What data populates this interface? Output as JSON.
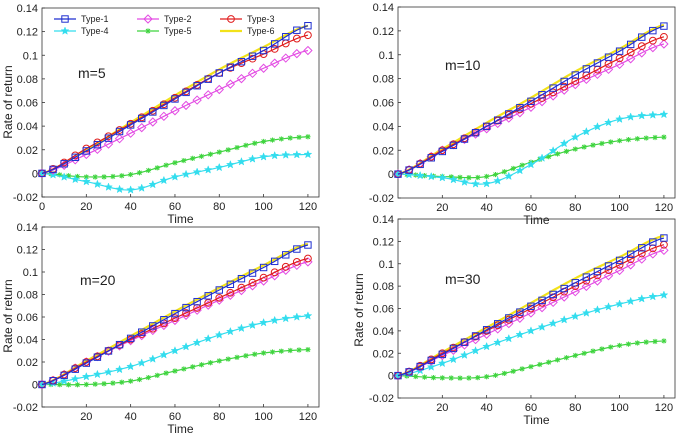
{
  "colors": {
    "Type-1": "#1f2fd0",
    "Type-2": "#e34ce3",
    "Type-3": "#e01c1c",
    "Type-4": "#33ddee",
    "Type-5": "#3fd43f",
    "Type-6": "#f2e21a",
    "dark": "#222222"
  },
  "chart_data": [
    {
      "type": "line",
      "annotation": "m=5",
      "xlabel": "Time",
      "ylabel": "Rate of return",
      "xlim": [
        0,
        125
      ],
      "ylim": [
        -0.02,
        0.14
      ],
      "xticks": [
        "0",
        "20",
        "40",
        "60",
        "80",
        "100",
        "120"
      ],
      "yticks": [
        "-0.02",
        "0",
        "0.02",
        "0.04",
        "0.06",
        "0.08",
        "0.1",
        "0.12",
        "0.14"
      ],
      "legend": [
        "Type-1",
        "Type-2",
        "Type-3",
        "Type-4",
        "Type-5",
        "Type-6"
      ],
      "x": [
        0,
        20,
        40,
        60,
        80,
        100,
        120
      ],
      "series": [
        {
          "name": "Type-1",
          "values": [
            0,
            0.019,
            0.041,
            0.063,
            0.085,
            0.104,
            0.125
          ]
        },
        {
          "name": "Type-2",
          "values": [
            0,
            0.016,
            0.034,
            0.053,
            0.071,
            0.089,
            0.104
          ]
        },
        {
          "name": "Type-3",
          "values": [
            0,
            0.021,
            0.042,
            0.064,
            0.085,
            0.101,
            0.117
          ]
        },
        {
          "name": "Type-4",
          "values": [
            0,
            -0.007,
            -0.014,
            -0.003,
            0.005,
            0.014,
            0.016
          ]
        },
        {
          "name": "Type-5",
          "values": [
            0,
            -0.003,
            -0.001,
            0.009,
            0.018,
            0.027,
            0.031
          ]
        },
        {
          "name": "Type-6",
          "values": [
            0,
            0.02,
            0.043,
            0.066,
            0.088,
            0.107,
            0.125
          ]
        }
      ]
    },
    {
      "type": "line",
      "annotation": "m=10",
      "xlabel": "Time",
      "ylabel": "",
      "xlim": [
        0,
        125
      ],
      "ylim": [
        -0.02,
        0.14
      ],
      "xticks": [
        "20",
        "40",
        "60",
        "80",
        "100",
        "120"
      ],
      "yticks": [
        "-0.02",
        "0",
        "0.02",
        "0.04",
        "0.06",
        "0.08",
        "0.1",
        "0.12",
        "0.14"
      ],
      "legend": [],
      "x": [
        0,
        20,
        40,
        60,
        80,
        100,
        120
      ],
      "series": [
        {
          "name": "Type-1",
          "values": [
            0,
            0.019,
            0.04,
            0.061,
            0.083,
            0.103,
            0.124
          ]
        },
        {
          "name": "Type-2",
          "values": [
            0,
            0.02,
            0.038,
            0.056,
            0.075,
            0.092,
            0.109
          ]
        },
        {
          "name": "Type-3",
          "values": [
            0,
            0.02,
            0.04,
            0.059,
            0.078,
            0.097,
            0.115
          ]
        },
        {
          "name": "Type-4",
          "values": [
            0,
            -0.003,
            -0.008,
            0.008,
            0.031,
            0.046,
            0.05
          ]
        },
        {
          "name": "Type-5",
          "values": [
            0,
            -0.002,
            -0.002,
            0.01,
            0.021,
            0.028,
            0.031
          ]
        },
        {
          "name": "Type-6",
          "values": [
            0,
            0.021,
            0.043,
            0.064,
            0.086,
            0.105,
            0.125
          ]
        }
      ]
    },
    {
      "type": "line",
      "annotation": "m=20",
      "xlabel": "Time",
      "ylabel": "Rate of return",
      "xlim": [
        0,
        125
      ],
      "ylim": [
        -0.02,
        0.14
      ],
      "xticks": [
        "20",
        "40",
        "60",
        "80",
        "100",
        "120"
      ],
      "yticks": [
        "-0.02",
        "0",
        "0.02",
        "0.04",
        "0.06",
        "0.08",
        "0.1",
        "0.12",
        "0.14"
      ],
      "legend": [],
      "x": [
        0,
        20,
        40,
        60,
        80,
        100,
        120
      ],
      "series": [
        {
          "name": "Type-1",
          "values": [
            0,
            0.019,
            0.041,
            0.063,
            0.084,
            0.104,
            0.124
          ]
        },
        {
          "name": "Type-2",
          "values": [
            0,
            0.02,
            0.039,
            0.057,
            0.075,
            0.092,
            0.109
          ]
        },
        {
          "name": "Type-3",
          "values": [
            0,
            0.02,
            0.04,
            0.059,
            0.077,
            0.095,
            0.112
          ]
        },
        {
          "name": "Type-4",
          "values": [
            0,
            0.007,
            0.016,
            0.03,
            0.044,
            0.055,
            0.061
          ]
        },
        {
          "name": "Type-5",
          "values": [
            0,
            0.0,
            0.003,
            0.012,
            0.021,
            0.028,
            0.031
          ]
        },
        {
          "name": "Type-6",
          "values": [
            0,
            0.021,
            0.043,
            0.065,
            0.086,
            0.106,
            0.125
          ]
        }
      ]
    },
    {
      "type": "line",
      "annotation": "m=30",
      "xlabel": "Time",
      "ylabel": "Rate of return",
      "xlim": [
        0,
        125
      ],
      "ylim": [
        -0.02,
        0.14
      ],
      "xticks": [
        "20",
        "40",
        "60",
        "80",
        "100",
        "120"
      ],
      "yticks": [
        "-0.02",
        "0",
        "0.02",
        "0.04",
        "0.06",
        "0.08",
        "0.1",
        "0.12",
        "0.14"
      ],
      "legend": [],
      "x": [
        0,
        20,
        40,
        60,
        80,
        100,
        120
      ],
      "series": [
        {
          "name": "Type-1",
          "values": [
            0,
            0.019,
            0.041,
            0.062,
            0.083,
            0.103,
            0.123
          ]
        },
        {
          "name": "Type-2",
          "values": [
            0,
            0.018,
            0.037,
            0.056,
            0.075,
            0.094,
            0.112
          ]
        },
        {
          "name": "Type-3",
          "values": [
            0,
            0.02,
            0.04,
            0.06,
            0.08,
            0.099,
            0.117
          ]
        },
        {
          "name": "Type-4",
          "values": [
            0,
            0.011,
            0.026,
            0.04,
            0.053,
            0.064,
            0.072
          ]
        },
        {
          "name": "Type-5",
          "values": [
            0,
            -0.002,
            -0.001,
            0.008,
            0.018,
            0.027,
            0.031
          ]
        },
        {
          "name": "Type-6",
          "values": [
            0,
            0.021,
            0.043,
            0.065,
            0.087,
            0.106,
            0.125
          ]
        }
      ]
    }
  ]
}
